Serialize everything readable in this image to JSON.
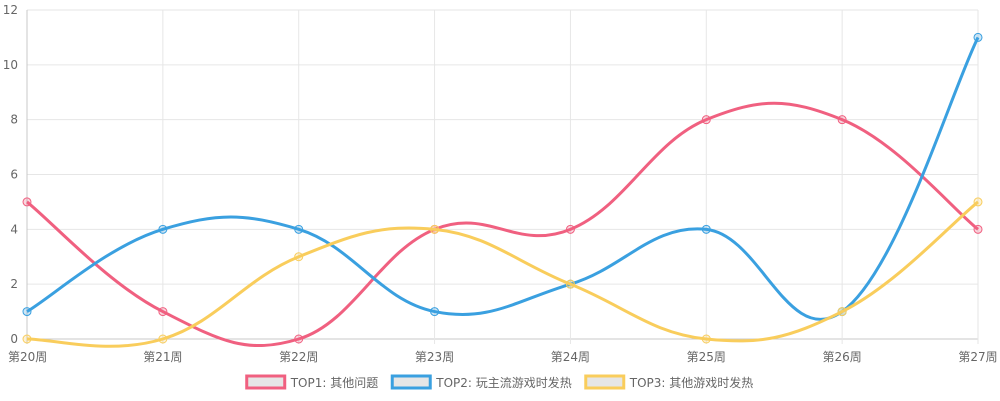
{
  "chart_data": {
    "type": "line",
    "title": "",
    "xlabel": "",
    "ylabel": "",
    "categories": [
      "第20周",
      "第21周",
      "第22周",
      "第23周",
      "第24周",
      "第25周",
      "第26周",
      "第27周"
    ],
    "ylim": [
      0,
      12
    ],
    "yticks": [
      0,
      2,
      4,
      6,
      8,
      10,
      12
    ],
    "grid": true,
    "legend_position": "bottom",
    "series": [
      {
        "name": "TOP1: 其他问题",
        "color": "#f06080",
        "values": [
          5,
          1,
          0,
          4,
          4,
          8,
          8,
          4
        ]
      },
      {
        "name": "TOP2: 玩主流游戏时发热",
        "color": "#3aa0e0",
        "values": [
          1,
          4,
          4,
          1,
          2,
          4,
          1,
          11
        ]
      },
      {
        "name": "TOP3: 其他游戏时发热",
        "color": "#f9cd5c",
        "values": [
          0,
          0,
          3,
          4,
          2,
          0,
          1,
          5
        ]
      }
    ]
  }
}
